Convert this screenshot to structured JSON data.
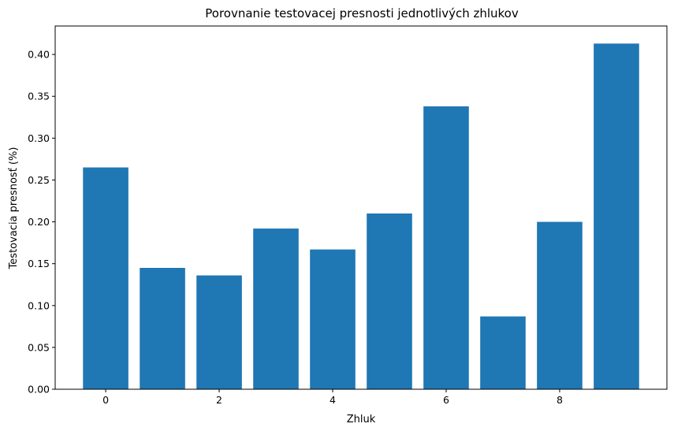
{
  "chart_data": {
    "type": "bar",
    "title": "Porovnanie testovacej presnosti jednotlivých zhlukov",
    "xlabel": "Zhluk",
    "ylabel": "Testovacia presnosť (%)",
    "categories": [
      0,
      1,
      2,
      3,
      4,
      5,
      6,
      7,
      8,
      9
    ],
    "values": [
      0.265,
      0.145,
      0.136,
      0.192,
      0.167,
      0.21,
      0.338,
      0.087,
      0.2,
      0.413
    ],
    "xticks": [
      "0",
      "2",
      "4",
      "6",
      "8"
    ],
    "yticks": [
      "0.00",
      "0.05",
      "0.10",
      "0.15",
      "0.20",
      "0.25",
      "0.30",
      "0.35",
      "0.40"
    ],
    "xlim": [
      -0.89,
      9.89
    ],
    "ylim": [
      0,
      0.434
    ],
    "bar_color": "#1f77b4",
    "grid": false
  }
}
